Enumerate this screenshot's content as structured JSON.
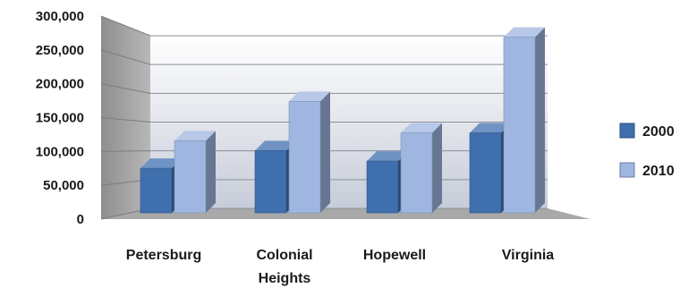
{
  "chart_data": {
    "type": "bar",
    "style": "3d-clustered-column",
    "categories": [
      [
        "Petersburg"
      ],
      [
        "Colonial",
        "Heights"
      ],
      [
        "Hopewell"
      ],
      [
        "Virginia"
      ]
    ],
    "series": [
      {
        "name": "2000",
        "color": "#3f6fad",
        "values": [
          68000,
          95000,
          79000,
          122000
        ]
      },
      {
        "name": "2010",
        "color": "#9fb6e0",
        "values": [
          110000,
          170000,
          122000,
          268000
        ]
      }
    ],
    "yticks": [
      "0",
      "50,000",
      "100,000",
      "150,000",
      "200,000",
      "250,000",
      "300,000"
    ],
    "ylim": [
      0,
      300000
    ],
    "legend_position": "right",
    "grid": true
  }
}
